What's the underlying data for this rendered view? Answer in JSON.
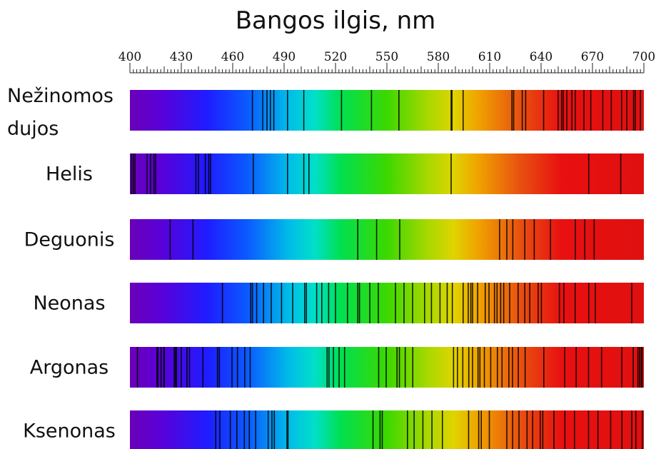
{
  "chart_data": {
    "type": "spectrum",
    "title": "",
    "xlabel": "Bangos ilgis, nm",
    "xlim": [
      400,
      700
    ],
    "x_ticks": [
      400,
      430,
      460,
      490,
      520,
      550,
      580,
      610,
      640,
      670,
      700
    ],
    "rows": [
      {
        "label": "Nežinomos dujos",
        "label_lines": [
          "Nežinomos",
          "dujos"
        ],
        "lines": [
          471.5,
          477.5,
          480,
          482,
          484,
          492,
          501.5,
          523.5,
          541,
          557,
          587.5,
          588,
          594.5,
          623,
          624,
          629,
          631,
          641.5,
          650,
          652,
          653,
          655,
          658,
          660,
          665,
          669,
          676,
          681,
          687,
          690,
          694,
          695,
          698
        ]
      },
      {
        "label": "Helis",
        "label_lines": [
          "Helis"
        ],
        "lines": [
          401,
          402,
          403,
          410,
          412,
          414,
          415,
          438.5,
          440,
          444,
          446,
          447,
          472,
          492,
          501.5,
          504.5,
          587.5,
          667.8,
          686.5
        ]
      },
      {
        "label": "Deguonis",
        "label_lines": [
          "Deguonis"
        ],
        "lines": [
          423.5,
          436.8,
          533,
          544,
          557.5,
          615.8,
          620,
          623.5,
          630.5,
          636,
          645.5,
          660,
          665.5,
          671
        ]
      },
      {
        "label": "Neonas",
        "label_lines": [
          "Neonas"
        ],
        "lines": [
          454,
          470.5,
          471.5,
          474,
          478,
          482.5,
          488.5,
          495,
          502,
          503,
          509,
          512,
          516,
          520,
          527,
          533,
          534,
          540,
          545,
          555,
          560,
          565,
          572,
          576,
          581,
          585.2,
          588.2,
          594.5,
          597.5,
          599,
          600,
          603,
          607.4,
          609.6,
          612.8,
          614.3,
          616.4,
          618.2,
          621.7,
          626.6,
          630.5,
          633.4,
          638.3,
          640.2,
          650.7,
          653.3,
          659.9,
          667.8,
          671.7,
          692.9,
          703.2
        ]
      },
      {
        "label": "Argonas",
        "label_lines": [
          "Argonas"
        ],
        "lines": [
          404.4,
          415.8,
          416.4,
          418.2,
          419.8,
          420.1,
          425.9,
          426.6,
          427.2,
          430,
          433.3,
          434.8,
          442.6,
          451.1,
          452.2,
          459.6,
          462.8,
          467,
          470.2,
          515.1,
          516.2,
          518.8,
          522.1,
          525.3,
          545.2,
          549.6,
          555.9,
          557.3,
          560.7,
          565.1,
          588.9,
          591.2,
          594.3,
          597.8,
          600,
          603.2,
          604.3,
          606.9,
          610.6,
          614.5,
          617.2,
          621.2,
          623.3,
          626.7,
          630.7,
          641.6,
          653.8,
          660.5,
          667.7,
          675.3,
          687.1,
          693.8,
          696.5,
          697.5,
          698.5,
          699
        ]
      },
      {
        "label": "Ksenonas",
        "label_lines": [
          "Ksenonas"
        ],
        "lines": [
          450.1,
          452.5,
          458.6,
          462.4,
          466.8,
          469.7,
          473.4,
          480.7,
          482.9,
          484.3,
          491.7,
          492.3,
          541.9,
          546,
          547.3,
          562,
          565.9,
          571,
          576.3,
          582.4,
          597.7,
          603.6,
          605.1,
          609.8,
          620,
          623.4,
          627.1,
          631.8,
          635.1,
          639.5,
          641,
          647.5,
          653.9,
          659.5,
          667.7,
          673.2,
          680.6,
          687.2,
          692.9,
          695.3,
          699.1
        ]
      }
    ]
  }
}
